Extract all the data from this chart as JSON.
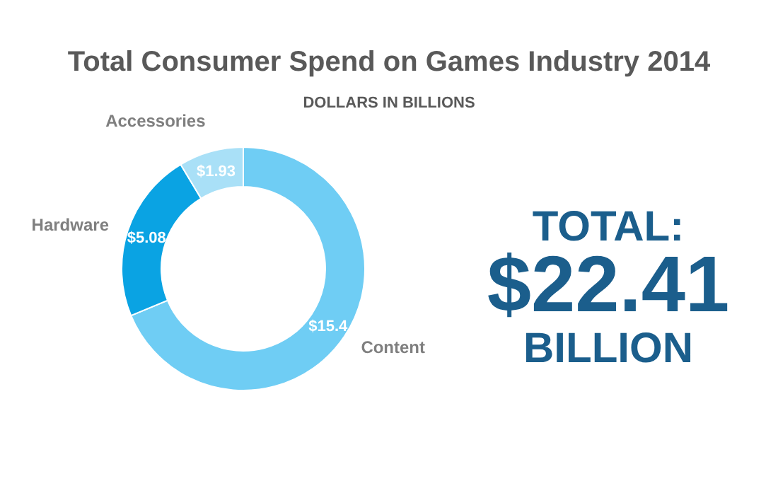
{
  "chart_data": {
    "type": "donut",
    "title": "Total Consumer Spend on Games Industry 2014",
    "subtitle": "DOLLARS IN BILLIONS",
    "categories": [
      "Content",
      "Hardware",
      "Accessories"
    ],
    "values": [
      15.4,
      5.08,
      1.93
    ],
    "colors": [
      "#6fcdf4",
      "#0aa3e3",
      "#a9e0f7"
    ],
    "value_labels": [
      "$15.4",
      "$5.08",
      "$1.93"
    ],
    "annotations": [
      "TOTAL:",
      "$22.41",
      "BILLION"
    ]
  }
}
